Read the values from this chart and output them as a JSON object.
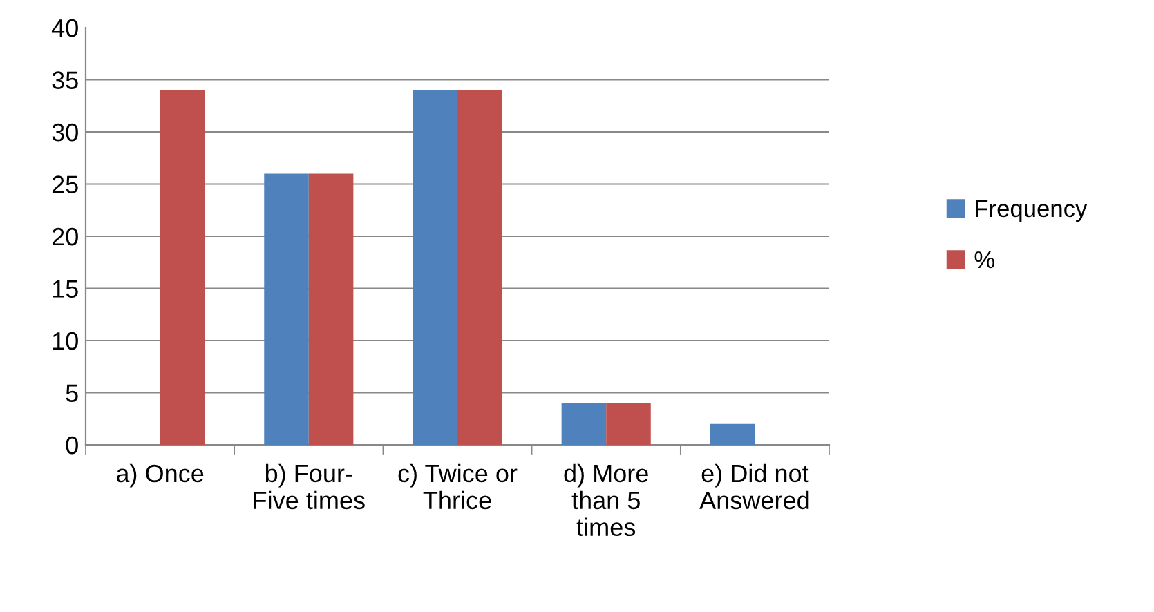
{
  "chart_data": {
    "type": "bar",
    "categories": [
      "a) Once",
      "b) Four-\nFive times",
      "c) Twice or\nThrice",
      "d) More\nthan 5\ntimes",
      "e) Did not\nAnswered"
    ],
    "series": [
      {
        "name": "Frequency",
        "color": "#4f81bd",
        "values": [
          null,
          26,
          34,
          4,
          2
        ]
      },
      {
        "name": "%",
        "color": "#c0504d",
        "values": [
          34,
          26,
          34,
          4,
          null
        ]
      }
    ],
    "ylim": [
      0,
      40
    ],
    "yticks": [
      0,
      5,
      10,
      15,
      20,
      25,
      30,
      35,
      40
    ],
    "grid": "y",
    "legend": "right"
  }
}
